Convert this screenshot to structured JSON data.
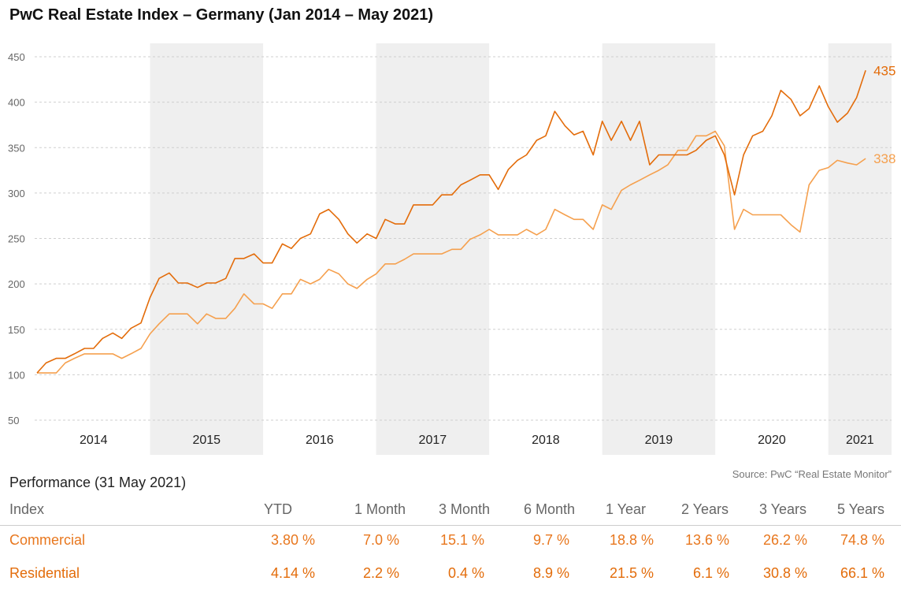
{
  "title": "PwC Real Estate Index – Germany (Jan 2014 – May 2021)",
  "source": "Source: PwC “Real Estate Monitor”",
  "colors": {
    "commercial": "#e36c0a",
    "residential": "#f5a04e",
    "band": "#efefef",
    "grid": "#cfcfcf",
    "text_accent": "#e8771e"
  },
  "chart_data": {
    "type": "line",
    "title": "PwC Real Estate Index – Germany (Jan 2014 – May 2021)",
    "xlabel": "",
    "ylabel": "",
    "xlim": [
      2014,
      2021.42
    ],
    "ylim": [
      50,
      450
    ],
    "yticks": [
      50,
      100,
      150,
      200,
      250,
      300,
      350,
      400,
      450
    ],
    "years": [
      "2014",
      "2015",
      "2016",
      "2017",
      "2018",
      "2019",
      "2020",
      "2021"
    ],
    "shaded_years": [
      "2015",
      "2017",
      "2019",
      "2021"
    ],
    "grid": "horizontal dashed",
    "series": [
      {
        "key": "commercial",
        "end_label": "435",
        "color": "#e36c0a",
        "points": [
          [
            2014.0,
            102
          ],
          [
            2014.08,
            113
          ],
          [
            2014.17,
            118
          ],
          [
            2014.25,
            118
          ],
          [
            2014.33,
            123
          ],
          [
            2014.42,
            129
          ],
          [
            2014.5,
            129
          ],
          [
            2014.58,
            140
          ],
          [
            2014.67,
            146
          ],
          [
            2014.75,
            140
          ],
          [
            2014.83,
            151
          ],
          [
            2014.92,
            157
          ],
          [
            2015.0,
            185
          ],
          [
            2015.08,
            206
          ],
          [
            2015.17,
            212
          ],
          [
            2015.25,
            201
          ],
          [
            2015.33,
            201
          ],
          [
            2015.42,
            196
          ],
          [
            2015.5,
            201
          ],
          [
            2015.58,
            201
          ],
          [
            2015.67,
            206
          ],
          [
            2015.75,
            228
          ],
          [
            2015.83,
            228
          ],
          [
            2015.92,
            233
          ],
          [
            2016.0,
            223
          ],
          [
            2016.08,
            223
          ],
          [
            2016.17,
            244
          ],
          [
            2016.25,
            239
          ],
          [
            2016.33,
            250
          ],
          [
            2016.42,
            255
          ],
          [
            2016.5,
            277
          ],
          [
            2016.58,
            282
          ],
          [
            2016.67,
            271
          ],
          [
            2016.75,
            255
          ],
          [
            2016.83,
            245
          ],
          [
            2016.92,
            255
          ],
          [
            2017.0,
            250
          ],
          [
            2017.08,
            271
          ],
          [
            2017.17,
            266
          ],
          [
            2017.25,
            266
          ],
          [
            2017.33,
            287
          ],
          [
            2017.42,
            287
          ],
          [
            2017.5,
            287
          ],
          [
            2017.58,
            298
          ],
          [
            2017.67,
            298
          ],
          [
            2017.75,
            309
          ],
          [
            2017.83,
            314
          ],
          [
            2017.92,
            320
          ],
          [
            2018.0,
            320
          ],
          [
            2018.08,
            304
          ],
          [
            2018.17,
            326
          ],
          [
            2018.25,
            336
          ],
          [
            2018.33,
            342
          ],
          [
            2018.42,
            358
          ],
          [
            2018.5,
            363
          ],
          [
            2018.58,
            390
          ],
          [
            2018.67,
            374
          ],
          [
            2018.75,
            364
          ],
          [
            2018.83,
            368
          ],
          [
            2018.92,
            342
          ],
          [
            2019.0,
            379
          ],
          [
            2019.08,
            358
          ],
          [
            2019.17,
            379
          ],
          [
            2019.25,
            358
          ],
          [
            2019.33,
            379
          ],
          [
            2019.42,
            331
          ],
          [
            2019.5,
            342
          ],
          [
            2019.58,
            342
          ],
          [
            2019.67,
            342
          ],
          [
            2019.75,
            342
          ],
          [
            2019.83,
            347
          ],
          [
            2019.92,
            358
          ],
          [
            2020.0,
            363
          ],
          [
            2020.08,
            342
          ],
          [
            2020.17,
            298
          ],
          [
            2020.25,
            342
          ],
          [
            2020.33,
            363
          ],
          [
            2020.42,
            368
          ],
          [
            2020.5,
            385
          ],
          [
            2020.58,
            413
          ],
          [
            2020.67,
            403
          ],
          [
            2020.75,
            385
          ],
          [
            2020.83,
            393
          ],
          [
            2020.92,
            418
          ],
          [
            2021.0,
            395
          ],
          [
            2021.08,
            378
          ],
          [
            2021.17,
            388
          ],
          [
            2021.25,
            405
          ],
          [
            2021.33,
            435
          ]
        ]
      },
      {
        "key": "residential",
        "end_label": "338",
        "color": "#f5a04e",
        "points": [
          [
            2014.0,
            102
          ],
          [
            2014.08,
            102
          ],
          [
            2014.17,
            102
          ],
          [
            2014.25,
            113
          ],
          [
            2014.33,
            118
          ],
          [
            2014.42,
            123
          ],
          [
            2014.5,
            123
          ],
          [
            2014.58,
            123
          ],
          [
            2014.67,
            123
          ],
          [
            2014.75,
            118
          ],
          [
            2014.83,
            123
          ],
          [
            2014.92,
            129
          ],
          [
            2015.0,
            145
          ],
          [
            2015.08,
            156
          ],
          [
            2015.17,
            167
          ],
          [
            2015.25,
            167
          ],
          [
            2015.33,
            167
          ],
          [
            2015.42,
            156
          ],
          [
            2015.5,
            167
          ],
          [
            2015.58,
            162
          ],
          [
            2015.67,
            162
          ],
          [
            2015.75,
            173
          ],
          [
            2015.83,
            189
          ],
          [
            2015.92,
            178
          ],
          [
            2016.0,
            178
          ],
          [
            2016.08,
            173
          ],
          [
            2016.17,
            189
          ],
          [
            2016.25,
            189
          ],
          [
            2016.33,
            205
          ],
          [
            2016.42,
            200
          ],
          [
            2016.5,
            205
          ],
          [
            2016.58,
            216
          ],
          [
            2016.67,
            211
          ],
          [
            2016.75,
            200
          ],
          [
            2016.83,
            195
          ],
          [
            2016.92,
            205
          ],
          [
            2017.0,
            211
          ],
          [
            2017.08,
            222
          ],
          [
            2017.17,
            222
          ],
          [
            2017.25,
            227
          ],
          [
            2017.33,
            233
          ],
          [
            2017.42,
            233
          ],
          [
            2017.5,
            233
          ],
          [
            2017.58,
            233
          ],
          [
            2017.67,
            238
          ],
          [
            2017.75,
            238
          ],
          [
            2017.83,
            249
          ],
          [
            2017.92,
            254
          ],
          [
            2018.0,
            260
          ],
          [
            2018.08,
            254
          ],
          [
            2018.17,
            254
          ],
          [
            2018.25,
            254
          ],
          [
            2018.33,
            260
          ],
          [
            2018.42,
            254
          ],
          [
            2018.5,
            260
          ],
          [
            2018.58,
            282
          ],
          [
            2018.67,
            276
          ],
          [
            2018.75,
            271
          ],
          [
            2018.83,
            271
          ],
          [
            2018.92,
            260
          ],
          [
            2019.0,
            287
          ],
          [
            2019.08,
            282
          ],
          [
            2019.17,
            303
          ],
          [
            2019.25,
            309
          ],
          [
            2019.33,
            314
          ],
          [
            2019.42,
            320
          ],
          [
            2019.5,
            325
          ],
          [
            2019.58,
            331
          ],
          [
            2019.67,
            347
          ],
          [
            2019.75,
            347
          ],
          [
            2019.83,
            363
          ],
          [
            2019.92,
            363
          ],
          [
            2020.0,
            368
          ],
          [
            2020.08,
            352
          ],
          [
            2020.17,
            260
          ],
          [
            2020.25,
            282
          ],
          [
            2020.33,
            276
          ],
          [
            2020.42,
            276
          ],
          [
            2020.5,
            276
          ],
          [
            2020.58,
            276
          ],
          [
            2020.67,
            265
          ],
          [
            2020.75,
            257
          ],
          [
            2020.83,
            309
          ],
          [
            2020.92,
            325
          ],
          [
            2021.0,
            328
          ],
          [
            2021.08,
            336
          ],
          [
            2021.17,
            333
          ],
          [
            2021.25,
            331
          ],
          [
            2021.33,
            338
          ]
        ]
      }
    ]
  },
  "performance": {
    "title": "Performance (31 May 2021)",
    "headers": [
      "Index",
      "YTD",
      "1 Month",
      "3 Month",
      "6 Month",
      "1 Year",
      "2 Years",
      "3 Years",
      "5 Years"
    ],
    "rows": [
      {
        "name": "Commercial",
        "values": [
          "3.80 %",
          "7.0 %",
          "15.1 %",
          "9.7 %",
          "18.8 %",
          "13.6 %",
          "26.2 %",
          "74.8 %"
        ]
      },
      {
        "name": "Residential",
        "values": [
          "4.14 %",
          "2.2 %",
          "0.4 %",
          "8.9 %",
          "21.5 %",
          "6.1 %",
          "30.8 %",
          "66.1 %"
        ]
      }
    ]
  }
}
